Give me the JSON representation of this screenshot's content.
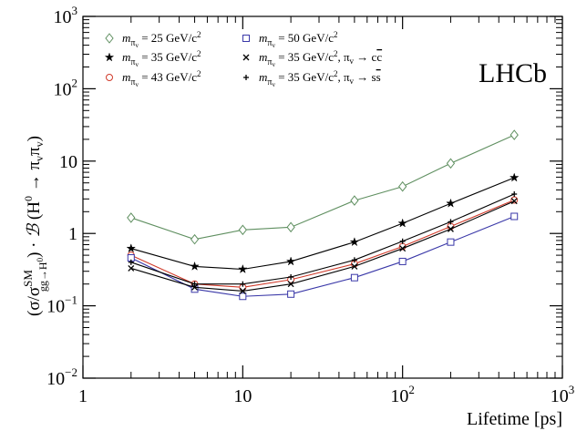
{
  "chart_data": {
    "type": "line",
    "xlabel": "Lifetime [ps]",
    "ylabel_parts": {
      "open": "(σ/σ",
      "sup": "SM",
      "sub": "gg→H",
      "subsup": "0",
      "mid": ") · ",
      "calB": "ℬ",
      "rest": " (H",
      "h0sup": "0",
      "arrow": " → π",
      "v1": "v",
      "pi2": "π",
      "v2": "v",
      "close": ")"
    },
    "x_scale": "log",
    "y_scale": "log",
    "xlim": [
      1,
      1000
    ],
    "ylim": [
      0.01,
      1000
    ],
    "x_ticks": [
      {
        "value": 1,
        "base": "1",
        "exp": ""
      },
      {
        "value": 10,
        "base": "10",
        "exp": ""
      },
      {
        "value": 100,
        "base": "10",
        "exp": "2"
      },
      {
        "value": 1000,
        "base": "10",
        "exp": "3"
      }
    ],
    "y_ticks": [
      {
        "value": 0.01,
        "base": "10",
        "exp": "−2"
      },
      {
        "value": 0.1,
        "base": "10",
        "exp": "−1"
      },
      {
        "value": 1,
        "base": "1",
        "exp": ""
      },
      {
        "value": 10,
        "base": "10",
        "exp": ""
      },
      {
        "value": 100,
        "base": "10",
        "exp": "2"
      },
      {
        "value": 1000,
        "base": "10",
        "exp": "3"
      }
    ],
    "annotation": "LHCb",
    "x": [
      2,
      5,
      10,
      20,
      50,
      100,
      200,
      500
    ],
    "series": [
      {
        "name": "m_πv = 25 GeV/c²",
        "mass": "25",
        "suffix": "",
        "bar": "",
        "marker": "diamond",
        "color": "#5f8f60",
        "values": [
          1.65,
          0.83,
          1.12,
          1.22,
          2.85,
          4.45,
          9.3,
          23.0
        ]
      },
      {
        "name": "m_πv = 35 GeV/c²",
        "mass": "35",
        "suffix": "",
        "bar": "",
        "marker": "star",
        "color": "#000000",
        "values": [
          0.62,
          0.35,
          0.32,
          0.41,
          0.76,
          1.38,
          2.6,
          5.9
        ]
      },
      {
        "name": "m_πv = 43 GeV/c²",
        "mass": "43",
        "suffix": "",
        "bar": "",
        "marker": "circle",
        "color": "#d03a2a",
        "values": [
          0.5,
          0.2,
          0.18,
          0.23,
          0.38,
          0.66,
          1.25,
          2.9
        ]
      },
      {
        "name": "m_πv = 50 GeV/c²",
        "mass": "50",
        "suffix": "",
        "bar": "",
        "marker": "square",
        "color": "#3a38a8",
        "values": [
          0.46,
          0.17,
          0.135,
          0.145,
          0.245,
          0.41,
          0.76,
          1.72
        ]
      },
      {
        "name": "m_πv = 35 GeV/c², πv → cc̄",
        "mass": "35",
        "suffix": ", π",
        "bar": "cc",
        "marker": "cross",
        "color": "#000000",
        "values": [
          0.33,
          0.18,
          0.16,
          0.2,
          0.35,
          0.62,
          1.15,
          2.8
        ]
      },
      {
        "name": "m_πv = 35 GeV/c², πv → ss̄",
        "mass": "35",
        "suffix": ", π",
        "bar": "ss",
        "marker": "plus",
        "color": "#000000",
        "values": [
          0.4,
          0.2,
          0.2,
          0.25,
          0.43,
          0.78,
          1.45,
          3.5
        ]
      }
    ],
    "legend_placement": "top",
    "grid": false
  }
}
